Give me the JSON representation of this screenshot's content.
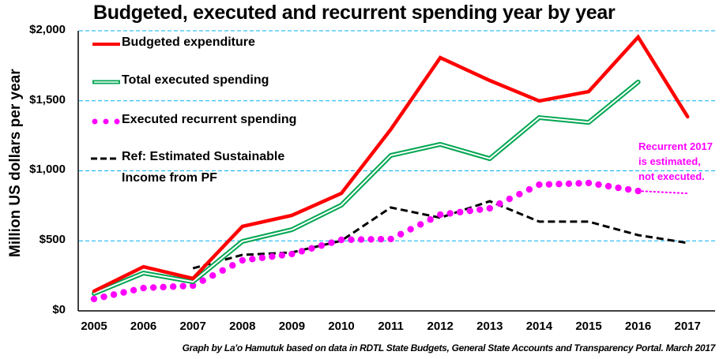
{
  "chart_data": {
    "type": "line",
    "title": "Budgeted, executed and recurrent spending year by year",
    "xlabel": "",
    "ylabel": "Million US dollars per year",
    "ylim": [
      0,
      2000
    ],
    "y_ticks": [
      0,
      500,
      1000,
      1500,
      2000
    ],
    "y_tick_labels": [
      "$0",
      "$500",
      "$1,000",
      "$1,500",
      "$2,000"
    ],
    "grid": "horizontal dashed",
    "legend_placement": "top-left",
    "categories": [
      "2005",
      "2006",
      "2007",
      "2008",
      "2009",
      "2010",
      "2011",
      "2012",
      "2013",
      "2014",
      "2015",
      "2016",
      "2017"
    ],
    "series": [
      {
        "name": "Budgeted expenditure",
        "style": "solid-thick",
        "color": "#ff0000",
        "values": [
          141,
          315,
          231,
          603,
          682,
          839,
          1296,
          1808,
          1645,
          1499,
          1566,
          1955,
          1386
        ]
      },
      {
        "name": "Total executed spending",
        "style": "double-line",
        "color": "#00a651",
        "values": [
          124,
          270,
          208,
          496,
          580,
          755,
          1110,
          1189,
          1087,
          1380,
          1346,
          1634,
          null
        ]
      },
      {
        "name": "Executed recurrent spending",
        "style": "round-dots",
        "color": "#ff00ff",
        "values": [
          85,
          163,
          180,
          361,
          406,
          507,
          513,
          687,
          732,
          901,
          913,
          856,
          839
        ],
        "estimated_from": "2016"
      },
      {
        "name": "Ref: Estimated Sustainable Income from PF",
        "style": "dashed",
        "color": "#000000",
        "values": [
          null,
          null,
          304,
          400,
          417,
          501,
          738,
          665,
          783,
          637,
          637,
          541,
          485
        ]
      }
    ],
    "legend": [
      {
        "label": "Budgeted expenditure"
      },
      {
        "label": "Total executed spending"
      },
      {
        "label": "Executed recurrent spending"
      },
      {
        "label_line1": "Ref: Estimated Sustainable",
        "label_line2": "Income from PF"
      }
    ],
    "annotations": [
      {
        "line1": "Recurrent 2017",
        "line2": "is estimated,",
        "line3": "not executed.",
        "color": "#ff00ff"
      }
    ],
    "source_note": "Graph by La'o Hamutuk based on data in RDTL State Budgets, General State Accounts and Transparency Portal. March 2017"
  },
  "colors": {
    "grid": "#00b0f0",
    "axis": "#000000"
  }
}
